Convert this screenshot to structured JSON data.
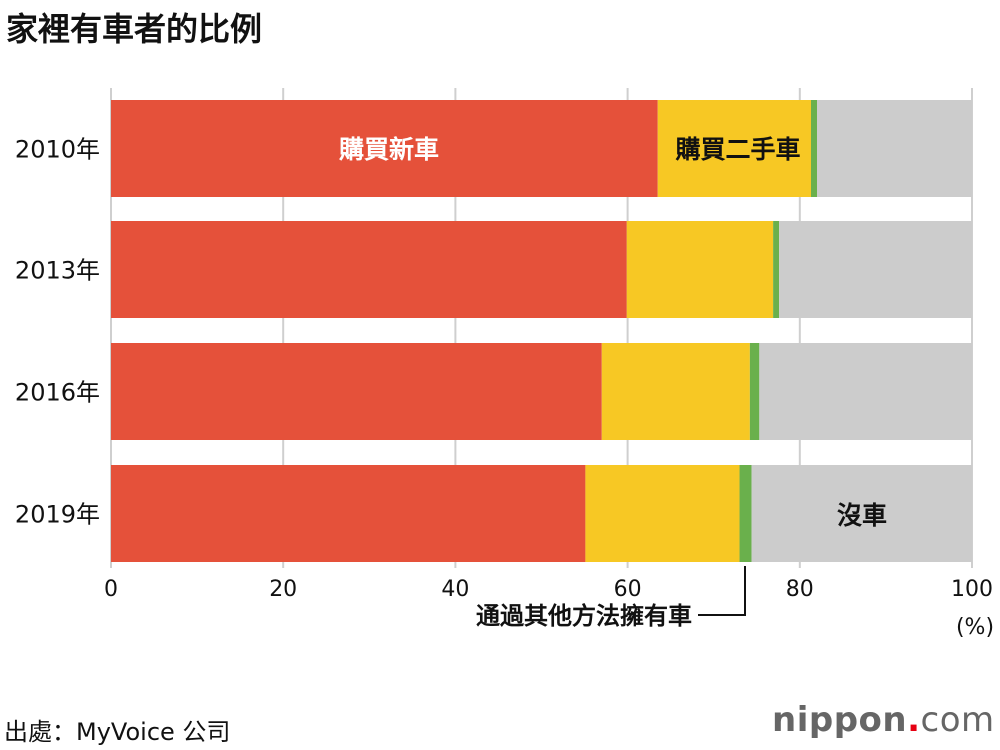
{
  "title": "家裡有車者的比例",
  "source": "出處：MyVoice 公司",
  "logo": {
    "name": "nippon",
    "dot": ".",
    "suffix": "com"
  },
  "chart_data": {
    "type": "bar",
    "orientation": "horizontal",
    "stacked": true,
    "categories": [
      "2010年",
      "2013年",
      "2016年",
      "2019年"
    ],
    "series": [
      {
        "name": "購買新車",
        "values": [
          63.5,
          59.9,
          57.0,
          55.1
        ],
        "color": "#e5513a"
      },
      {
        "name": "購買二手車",
        "values": [
          17.8,
          17.0,
          17.2,
          17.9
        ],
        "color": "#f7c824"
      },
      {
        "name": "通過其他方法擁有車",
        "values": [
          0.7,
          0.7,
          1.1,
          1.4
        ],
        "color": "#6ab04c"
      },
      {
        "name": "沒車",
        "values": [
          18.0,
          22.4,
          24.7,
          25.6
        ],
        "color": "#cccccc"
      }
    ],
    "xlim": [
      0,
      100
    ],
    "xticks": [
      "0",
      "20",
      "40",
      "60",
      "80",
      "100"
    ],
    "xunit": "(%)",
    "grid": true
  }
}
